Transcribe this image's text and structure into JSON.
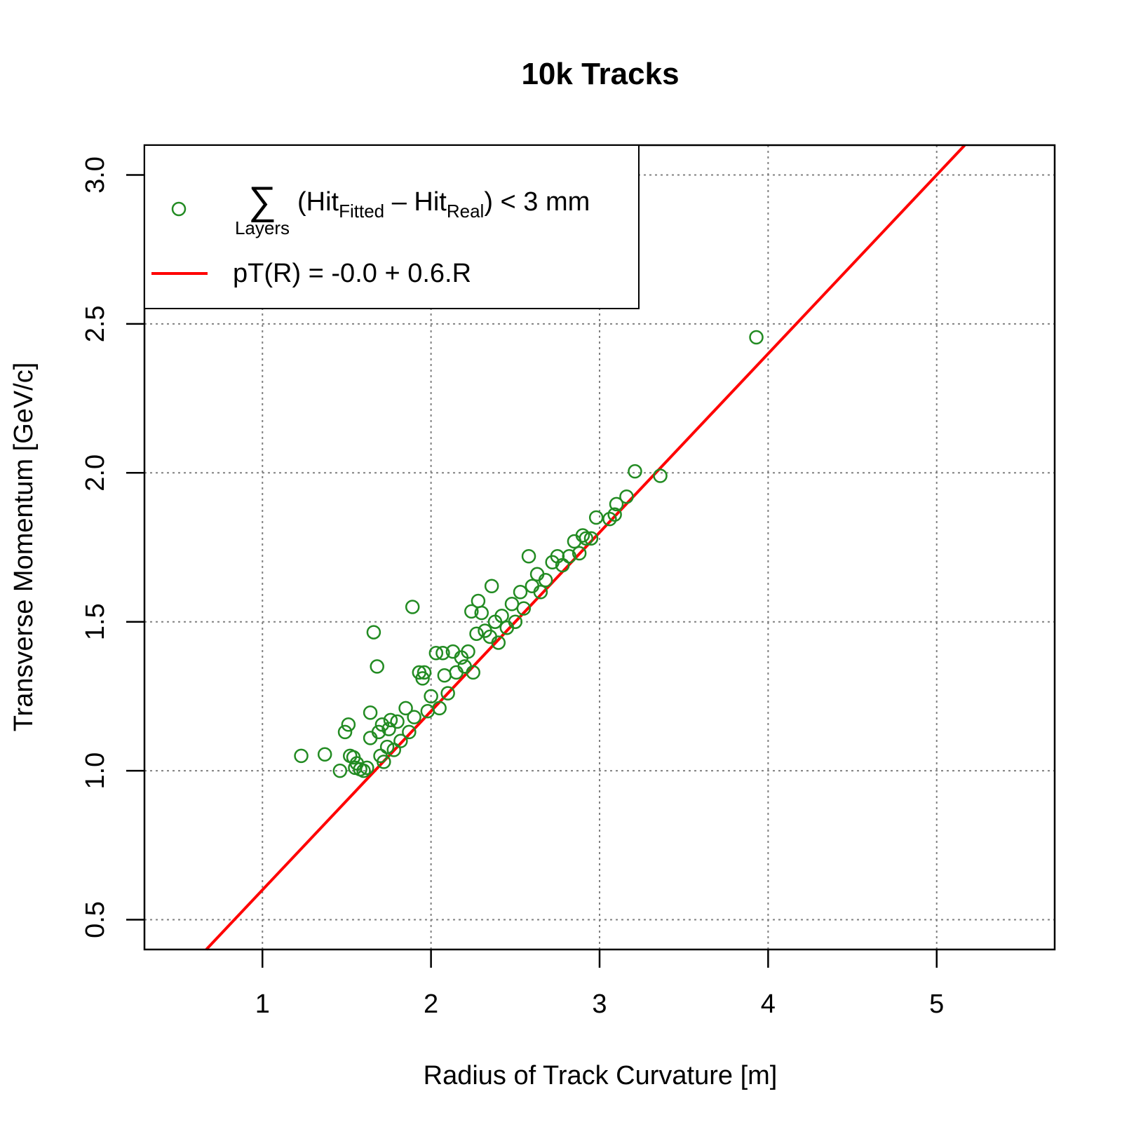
{
  "chart_data": {
    "type": "scatter",
    "title": "10k Tracks",
    "xlabel": "Radius of Track Curvature [m]",
    "ylabel": "Transverse Momentum [GeV/c]",
    "xlim": [
      0.3,
      5.7
    ],
    "ylim": [
      0.4,
      3.1
    ],
    "x_ticks": [
      1,
      2,
      3,
      4,
      5
    ],
    "x_tick_labels": [
      "1",
      "2",
      "3",
      "4",
      "5"
    ],
    "y_ticks": [
      0.5,
      1.0,
      1.5,
      2.0,
      2.5,
      3.0
    ],
    "y_tick_labels": [
      "0.5",
      "1.0",
      "1.5",
      "2.0",
      "2.5",
      "3.0"
    ],
    "grid": true,
    "legend_position": "top-left",
    "legend": {
      "points_label": {
        "sum_symbol": "∑",
        "sum_subscript": "Layers",
        "open": "(Hit",
        "sub1": "Fitted",
        "minus": " – Hit",
        "sub2": "Real",
        "close": ") < 3 mm"
      },
      "line_label": "pT(R) = -0.0 + 0.6.R"
    },
    "colors": {
      "points": "#228B22",
      "fit_line": "#FF0000",
      "grid": "#808080"
    },
    "fit_line": {
      "intercept": -0.0,
      "slope": 0.6
    },
    "series": [
      {
        "kind": "points",
        "points": [
          [
            1.23,
            1.05
          ],
          [
            1.37,
            1.055
          ],
          [
            1.46,
            1.0
          ],
          [
            1.49,
            1.13
          ],
          [
            1.51,
            1.155
          ],
          [
            1.52,
            1.05
          ],
          [
            1.54,
            1.045
          ],
          [
            1.55,
            1.01
          ],
          [
            1.56,
            1.025
          ],
          [
            1.58,
            1.005
          ],
          [
            1.6,
            1.0
          ],
          [
            1.62,
            1.01
          ],
          [
            1.64,
            1.195
          ],
          [
            1.64,
            1.11
          ],
          [
            1.66,
            1.465
          ],
          [
            1.68,
            1.35
          ],
          [
            1.69,
            1.13
          ],
          [
            1.7,
            1.05
          ],
          [
            1.71,
            1.155
          ],
          [
            1.72,
            1.03
          ],
          [
            1.74,
            1.08
          ],
          [
            1.75,
            1.14
          ],
          [
            1.76,
            1.17
          ],
          [
            1.78,
            1.07
          ],
          [
            1.8,
            1.165
          ],
          [
            1.82,
            1.1
          ],
          [
            1.85,
            1.21
          ],
          [
            1.87,
            1.13
          ],
          [
            1.89,
            1.55
          ],
          [
            1.9,
            1.18
          ],
          [
            1.93,
            1.33
          ],
          [
            1.95,
            1.31
          ],
          [
            1.96,
            1.33
          ],
          [
            1.98,
            1.2
          ],
          [
            2.0,
            1.25
          ],
          [
            2.03,
            1.395
          ],
          [
            2.05,
            1.21
          ],
          [
            2.07,
            1.395
          ],
          [
            2.08,
            1.32
          ],
          [
            2.1,
            1.26
          ],
          [
            2.13,
            1.4
          ],
          [
            2.15,
            1.33
          ],
          [
            2.18,
            1.38
          ],
          [
            2.2,
            1.35
          ],
          [
            2.22,
            1.4
          ],
          [
            2.24,
            1.535
          ],
          [
            2.25,
            1.33
          ],
          [
            2.27,
            1.46
          ],
          [
            2.28,
            1.57
          ],
          [
            2.3,
            1.53
          ],
          [
            2.32,
            1.47
          ],
          [
            2.35,
            1.45
          ],
          [
            2.36,
            1.62
          ],
          [
            2.38,
            1.5
          ],
          [
            2.4,
            1.43
          ],
          [
            2.42,
            1.52
          ],
          [
            2.45,
            1.48
          ],
          [
            2.48,
            1.56
          ],
          [
            2.5,
            1.5
          ],
          [
            2.53,
            1.6
          ],
          [
            2.55,
            1.545
          ],
          [
            2.58,
            1.72
          ],
          [
            2.6,
            1.62
          ],
          [
            2.63,
            1.66
          ],
          [
            2.65,
            1.6
          ],
          [
            2.68,
            1.64
          ],
          [
            2.72,
            1.7
          ],
          [
            2.75,
            1.72
          ],
          [
            2.78,
            1.69
          ],
          [
            2.82,
            1.72
          ],
          [
            2.85,
            1.77
          ],
          [
            2.88,
            1.73
          ],
          [
            2.9,
            1.79
          ],
          [
            2.92,
            1.78
          ],
          [
            2.95,
            1.78
          ],
          [
            2.98,
            1.85
          ],
          [
            3.06,
            1.845
          ],
          [
            3.09,
            1.86
          ],
          [
            3.1,
            1.895
          ],
          [
            3.16,
            1.92
          ],
          [
            3.21,
            2.005
          ],
          [
            3.36,
            1.99
          ],
          [
            3.93,
            2.455
          ]
        ]
      }
    ]
  }
}
